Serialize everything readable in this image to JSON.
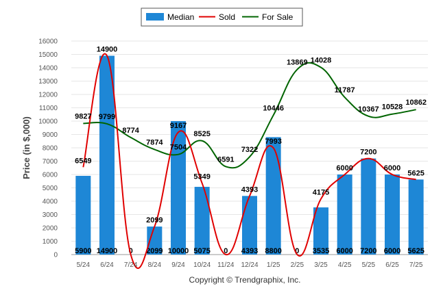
{
  "chart_data": {
    "type": "bar",
    "categories": [
      "5/24",
      "6/24",
      "7/24",
      "8/24",
      "9/24",
      "10/24",
      "11/24",
      "12/24",
      "1/25",
      "2/25",
      "3/25",
      "4/25",
      "5/25",
      "6/25",
      "7/25"
    ],
    "series": [
      {
        "name": "Median",
        "type": "bar",
        "color": "#1e87d6",
        "values": [
          5900,
          14900,
          0,
          2099,
          10000,
          5075,
          0,
          4393,
          8800,
          0,
          3535,
          6000,
          7200,
          6000,
          5625
        ]
      },
      {
        "name": "Sold",
        "type": "line",
        "color": "#e00000",
        "values": [
          6549,
          14900,
          0,
          2099,
          9167,
          5349,
          0,
          4393,
          7993,
          0,
          4175,
          6000,
          7200,
          6000,
          5625
        ]
      },
      {
        "name": "For Sale",
        "type": "line",
        "color": "#006400",
        "values": [
          9827,
          9799,
          8774,
          7874,
          7504,
          8525,
          6591,
          7322,
          10446,
          13869,
          14028,
          11787,
          10367,
          10528,
          10862
        ]
      }
    ],
    "ylabel": "Price (in $,000)",
    "ylim": [
      0,
      16000
    ],
    "yticks": [
      0,
      1000,
      2000,
      3000,
      4000,
      5000,
      6000,
      7000,
      8000,
      9000,
      10000,
      11000,
      12000,
      13000,
      14000,
      15000,
      16000
    ],
    "grid": true,
    "legend_position": "top-center"
  },
  "footer": {
    "copyright": "Copyright © Trendgraphix, Inc."
  }
}
